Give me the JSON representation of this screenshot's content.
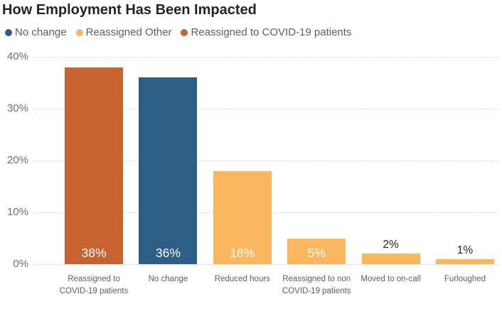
{
  "chart": {
    "title": "How Employment Has Been Impacted"
  },
  "legend": {
    "items": [
      {
        "label": "No change",
        "color": "#2D5E85"
      },
      {
        "label": "Reassigned Other",
        "color": "#FBB75D"
      },
      {
        "label": "Reassigned to COVID-19 patients",
        "color": "#C8622E"
      }
    ]
  },
  "chart_data": {
    "type": "bar",
    "title": "How Employment Has Been Impacted",
    "categories": [
      "Reassigned to COVID-19 patients",
      "No change",
      "Reduced hours",
      "Reassigned to non COVID-19 patients",
      "Moved to on-call",
      "Furloughed"
    ],
    "values": [
      38,
      36,
      18,
      5,
      2,
      1
    ],
    "data_labels": [
      "38%",
      "36%",
      "18%",
      "5%",
      "2%",
      "1%"
    ],
    "label_inside": [
      true,
      true,
      true,
      true,
      false,
      false
    ],
    "bar_colors": [
      "#C8622E",
      "#2D5E85",
      "#FBB75D",
      "#FBB75D",
      "#FBB75D",
      "#FBB75D"
    ],
    "y_ticks": [
      "0%",
      "10%",
      "20%",
      "30%",
      "40%"
    ],
    "ylim": [
      0,
      40
    ],
    "xlabel": "",
    "ylabel": "",
    "grid": "horizontal-dotted",
    "legend_position": "top-left"
  },
  "colors": {
    "no_change_blue": "#2D5E85",
    "reassigned_other_orange": "#FBB75D",
    "reassigned_covid_orange": "#C8622E",
    "title_text": "#252423",
    "axis_text": "#605E5C",
    "ytick_text": "#707070",
    "inside_label_text": "#FFFFFF",
    "gridline": "#D5D5D5",
    "background": "#FFFFFF"
  }
}
